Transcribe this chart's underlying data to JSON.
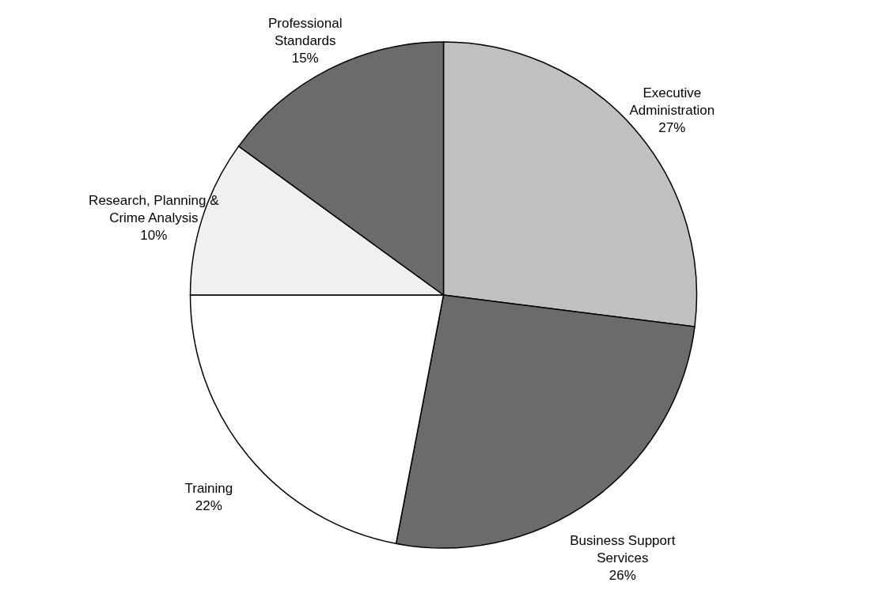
{
  "chart_data": {
    "type": "pie",
    "categories": [
      "Executive Administration",
      "Business Support Services",
      "Training",
      "Research, Planning & Crime Analysis",
      "Professional Standards"
    ],
    "values": [
      27,
      26,
      22,
      10,
      15
    ],
    "value_labels": [
      "27%",
      "26%",
      "22%",
      "10%",
      "15%"
    ],
    "colors": [
      "#c0c0c0",
      "#6b6b6b",
      "#ffffff",
      "#f0f0f0",
      "#6b6b6b"
    ],
    "legend": false
  }
}
